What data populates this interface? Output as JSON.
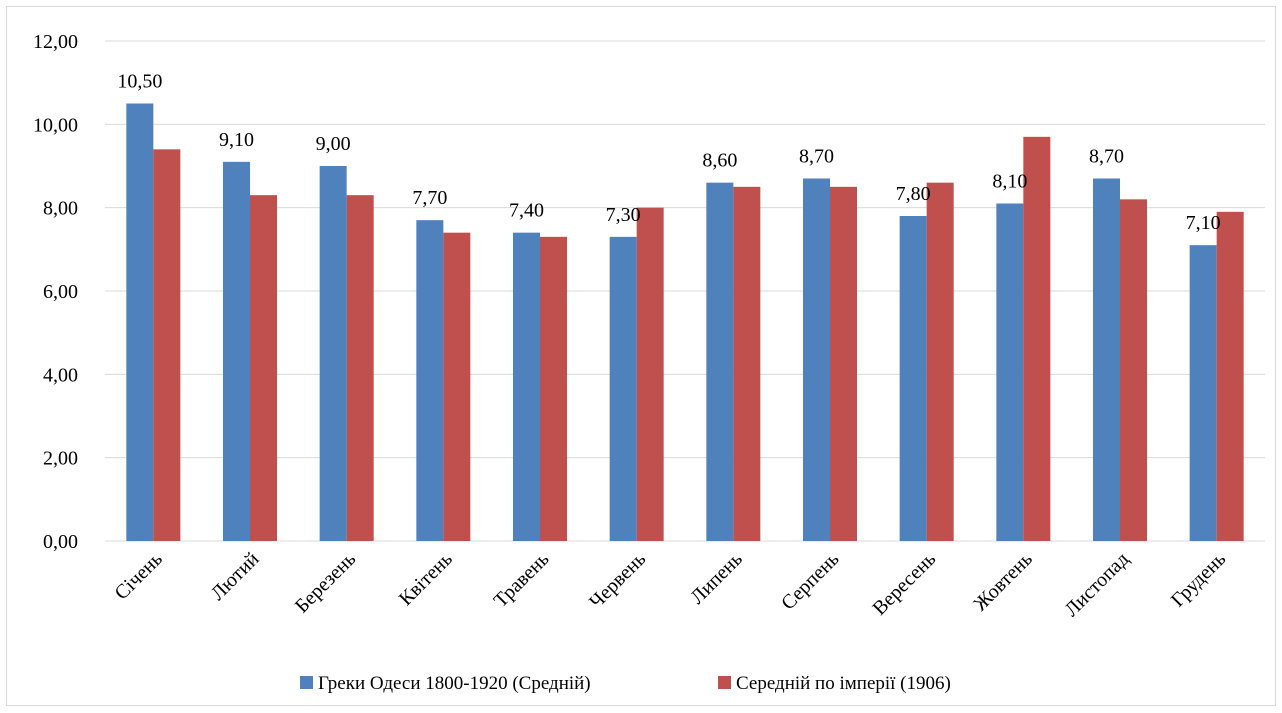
{
  "chart_data": {
    "type": "bar",
    "categories": [
      "Січень",
      "Лютий",
      "Березень",
      "Квітень",
      "Травень",
      "Червень",
      "Липень",
      "Серпень",
      "Вересень",
      "Жовтень",
      "Листопад",
      "Грудень"
    ],
    "series": [
      {
        "name": "Греки Одеси 1800-1920 (Средній)",
        "color": "#4f81bd",
        "values": [
          10.5,
          9.1,
          9.0,
          7.7,
          7.4,
          7.3,
          8.6,
          8.7,
          7.8,
          8.1,
          8.7,
          7.1
        ],
        "data_labels": [
          "10,50",
          "9,10",
          "9,00",
          "7,70",
          "7,40",
          "7,30",
          "8,60",
          "8,70",
          "7,80",
          "8,10",
          "8,70",
          "7,10"
        ]
      },
      {
        "name": "Середній по імперії (1906)",
        "color": "#c0504d",
        "values": [
          9.4,
          8.3,
          8.3,
          7.4,
          7.3,
          8.0,
          8.5,
          8.5,
          8.6,
          9.7,
          8.2,
          7.9
        ]
      }
    ],
    "ylim": [
      0,
      12
    ],
    "yticks": [
      "0,00",
      "2,00",
      "4,00",
      "6,00",
      "8,00",
      "10,00",
      "12,00"
    ],
    "grid": true,
    "legend_position": "bottom"
  }
}
